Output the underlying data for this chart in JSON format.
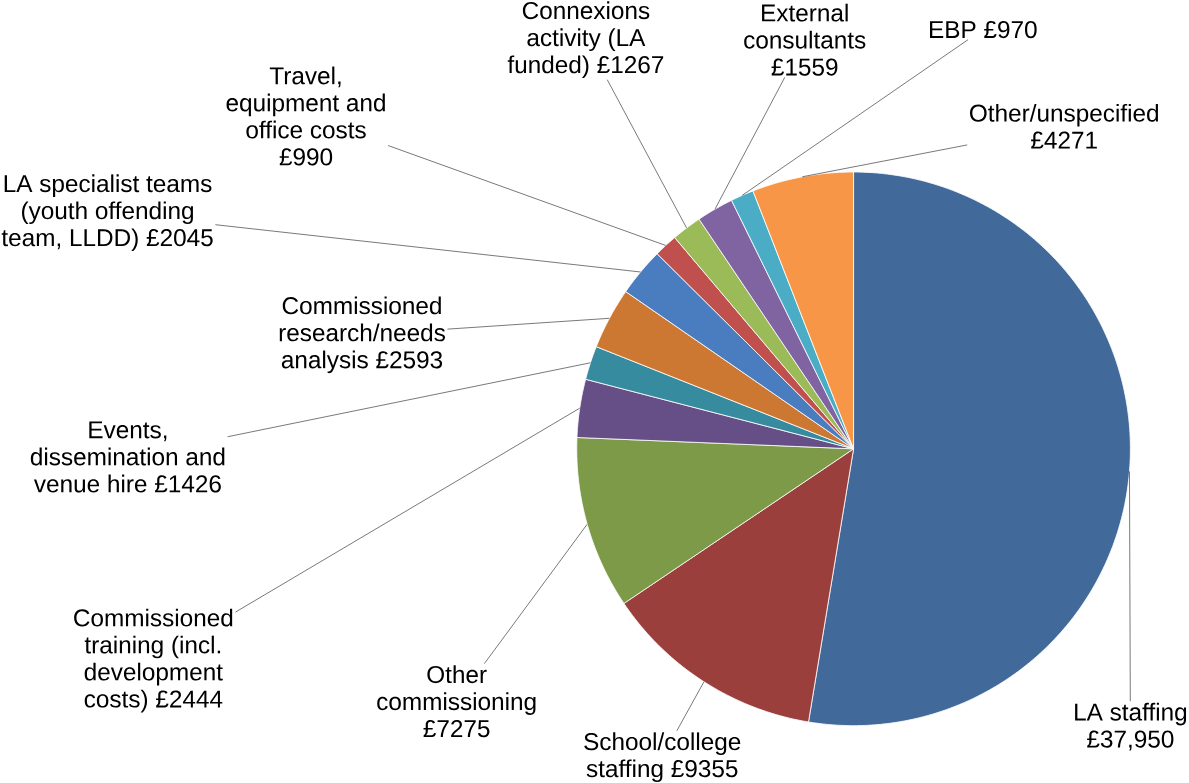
{
  "chart_data": {
    "type": "pie",
    "categories": [
      "LA staffing",
      "School/college staffing",
      "Other commissioning",
      "Commissioned training (incl. development costs)",
      "Events, dissemination and venue hire",
      "Commissioned research/needs analysis",
      "LA specialist teams (youth offending team, LLDD)",
      "Travel, equipment and office costs",
      "Connexions activity (LA funded)",
      "External consultants",
      "EBP",
      "Other/unspecified"
    ],
    "values": [
      37950,
      9355,
      7275,
      2444,
      1426,
      2593,
      2045,
      990,
      1267,
      1559,
      970,
      4271
    ],
    "value_labels": [
      "£37,950",
      "£9355",
      "£7275",
      "£2444",
      "£1426",
      "£2593",
      "£2045",
      "£990",
      "£1267",
      "£1559",
      "£970",
      "£4271"
    ],
    "colors": [
      "#416a9b",
      "#9b3f3d",
      "#7d9a48",
      "#654f86",
      "#368b9f",
      "#cc7833",
      "#4a7dc0",
      "#c0504d",
      "#9bbb59",
      "#8064a2",
      "#4bacc6",
      "#f79646"
    ]
  }
}
